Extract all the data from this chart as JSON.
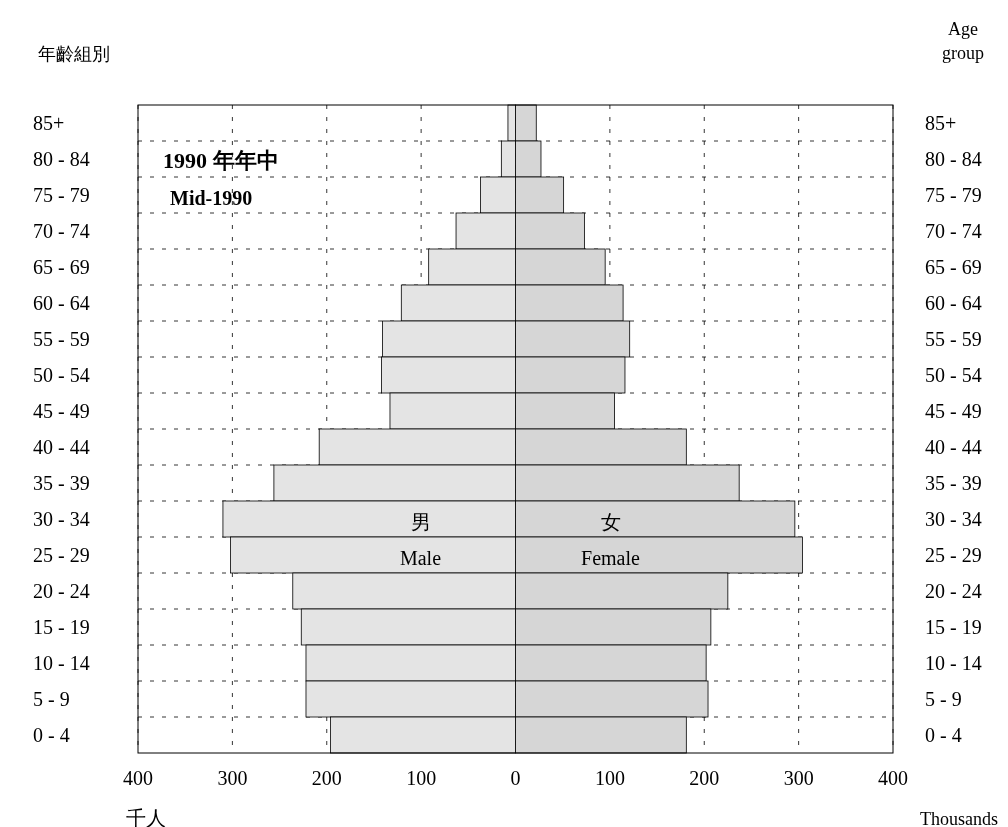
{
  "chart_data": {
    "type": "bar",
    "orientation": "horizontal",
    "stacked": true,
    "title": "1990 年年中",
    "subtitle": "Mid-1990",
    "ylabel": "年齡組別",
    "y2label": "Age group",
    "xlabel": "千人",
    "annotations": [
      "Thousands"
    ],
    "categories": [
      "85+",
      "80 - 84",
      "75 - 79",
      "70 - 74",
      "65 - 69",
      "60 - 64",
      "55 - 59",
      "50 - 54",
      "45 - 49",
      "40 - 44",
      "35 - 39",
      "30 - 34",
      "25 - 29",
      "20 - 24",
      "15 - 19",
      "10 - 14",
      "5 - 9",
      "0 - 4"
    ],
    "series": [
      {
        "name": "男\nMale",
        "color": "#e4e4e4",
        "values": [
          -8,
          -15,
          -37,
          -63,
          -92,
          -121,
          -141,
          -142,
          -133,
          -208,
          -256,
          -310,
          -302,
          -236,
          -227,
          -222,
          -222,
          -196
        ]
      },
      {
        "name": "女\nFemale",
        "color": "#d6d6d6",
        "values": [
          22,
          27,
          51,
          73,
          95,
          114,
          121,
          116,
          105,
          181,
          237,
          296,
          304,
          225,
          207,
          202,
          204,
          181
        ]
      }
    ],
    "xlim": [
      -400,
      400
    ],
    "xticks": [
      {
        "value": -400,
        "label": "400"
      },
      {
        "value": -300,
        "label": "300"
      },
      {
        "value": -200,
        "label": "200"
      },
      {
        "value": -100,
        "label": "100"
      },
      0,
      100,
      200,
      300,
      400
    ],
    "grid": true
  }
}
